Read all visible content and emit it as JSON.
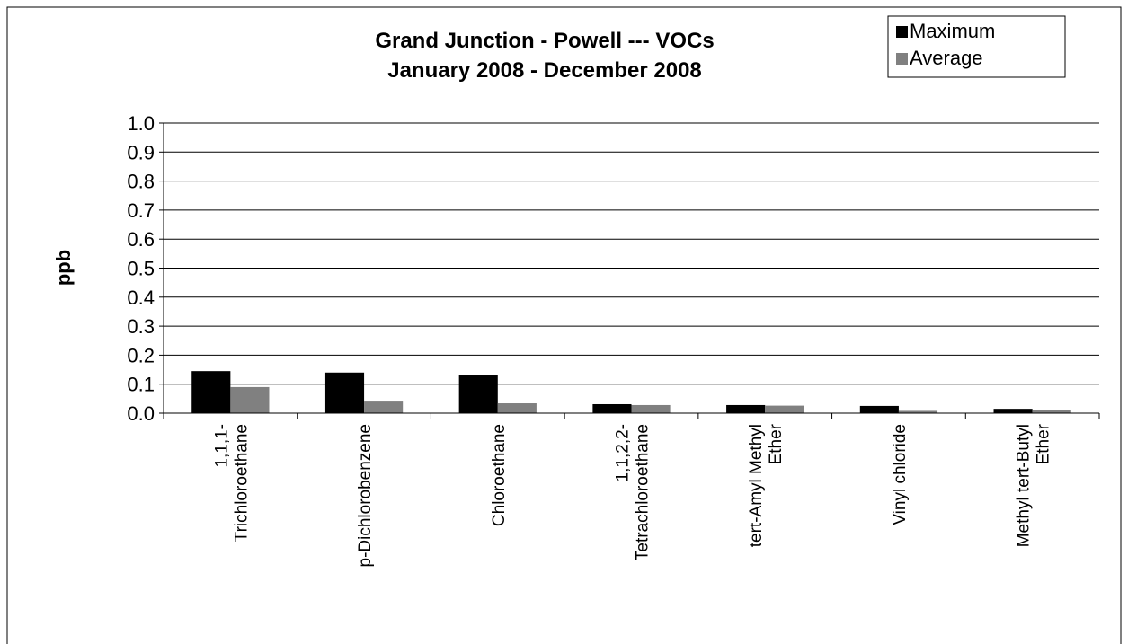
{
  "chart_data": {
    "type": "bar",
    "title": "Grand Junction - Powell --- VOCs",
    "subtitle": "January 2008 - December 2008",
    "y_label": "ppb",
    "categories": [
      "1,1,1-\nTrichloroethane",
      "p-Dichlorobenzene",
      "Chloroethane",
      "1,1,2,2-\nTetrachloroethane",
      "tert-Amyl Methyl\nEther",
      "Vinyl chloride",
      "Methyl tert-Butyl\nEther"
    ],
    "series": [
      {
        "name": "Maximum",
        "color": "#000000",
        "values": [
          0.145,
          0.14,
          0.13,
          0.031,
          0.028,
          0.025,
          0.015
        ]
      },
      {
        "name": "Average",
        "color": "#808080",
        "values": [
          0.09,
          0.04,
          0.034,
          0.028,
          0.026,
          0.008,
          0.01
        ]
      }
    ],
    "ylim": [
      0,
      1
    ],
    "yticks": [
      {
        "value": 0,
        "label": "0.0"
      },
      0.1,
      0.2,
      0.3,
      0.4,
      0.5,
      0.6,
      0.7,
      0.8,
      0.9,
      {
        "value": 1,
        "label": "1.0"
      }
    ],
    "grid": true,
    "legend": "top-right"
  }
}
